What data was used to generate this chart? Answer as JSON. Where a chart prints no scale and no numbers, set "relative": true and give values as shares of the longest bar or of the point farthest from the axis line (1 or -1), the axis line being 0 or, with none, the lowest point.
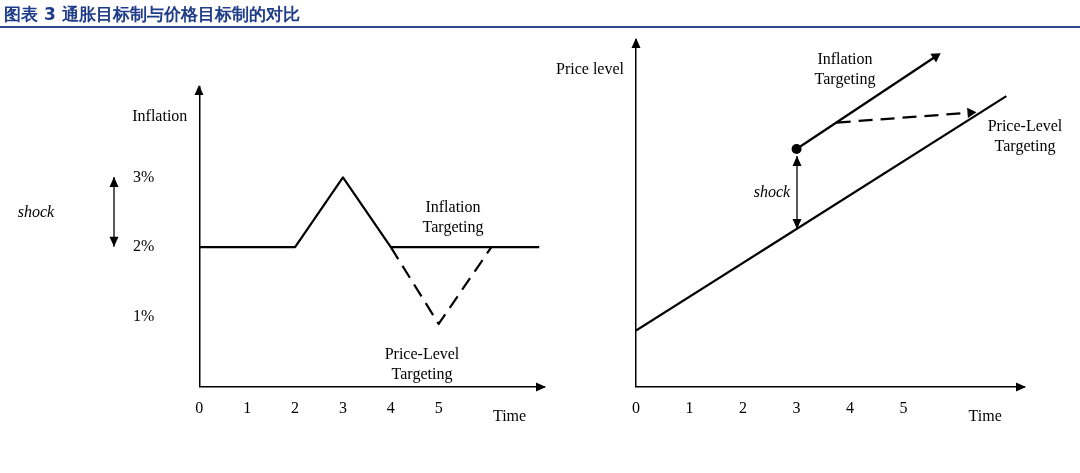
{
  "chart_data": [
    {
      "type": "line",
      "title": "图表 3 通胀目标制与价格目标制的对比",
      "ylabel": "Inflation",
      "xlabel": "Time",
      "xlim": [
        0,
        7.2
      ],
      "xticks": [
        0,
        1,
        2,
        3,
        4,
        5
      ],
      "ylim": [
        0,
        4.3
      ],
      "yticks": [
        {
          "value": 1,
          "label": "1%"
        },
        {
          "value": 2,
          "label": "2%"
        },
        {
          "value": 3,
          "label": "3%"
        }
      ],
      "grid": false,
      "legend": false,
      "marker": "none",
      "series": [
        {
          "name": "Inflation Targeting",
          "color": "#000000",
          "x": [
            0,
            2,
            3,
            4,
            7.1
          ],
          "values": [
            2,
            2,
            3,
            2,
            2
          ]
        },
        {
          "name": "Price-Level Targeting",
          "color": "#000000",
          "line_style": "dashed",
          "x": [
            4,
            5,
            6.1
          ],
          "values": [
            2,
            0.9,
            2
          ]
        }
      ],
      "annotations": [
        "shock"
      ]
    },
    {
      "type": "line",
      "relative": true,
      "ylabel": "Price level",
      "xlabel": "Time",
      "xlim": [
        0,
        7.25
      ],
      "xticks": [
        0,
        1,
        2,
        3,
        4,
        5
      ],
      "grid": false,
      "legend": false,
      "marker": "none",
      "series": [
        {
          "color": "#000000",
          "x": [
            0,
            6.92
          ],
          "values": [
            0.17,
            0.88
          ]
        },
        {
          "name": "Inflation Targeting",
          "color": "#000000",
          "marker": "triangle",
          "x": [
            3,
            5.6
          ],
          "values": [
            0.72,
            1.0
          ]
        },
        {
          "name": "Price-Level Targeting",
          "color": "#000000",
          "marker": "triangle",
          "line_style": "dashed",
          "x": [
            3.75,
            6.25
          ],
          "values": [
            0.8,
            0.83
          ]
        },
        {
          "type": "scatter",
          "color": "#000000",
          "marker": "circle",
          "x": [
            3
          ],
          "values": [
            0.72
          ]
        }
      ],
      "annotations": [
        "shock"
      ]
    }
  ]
}
